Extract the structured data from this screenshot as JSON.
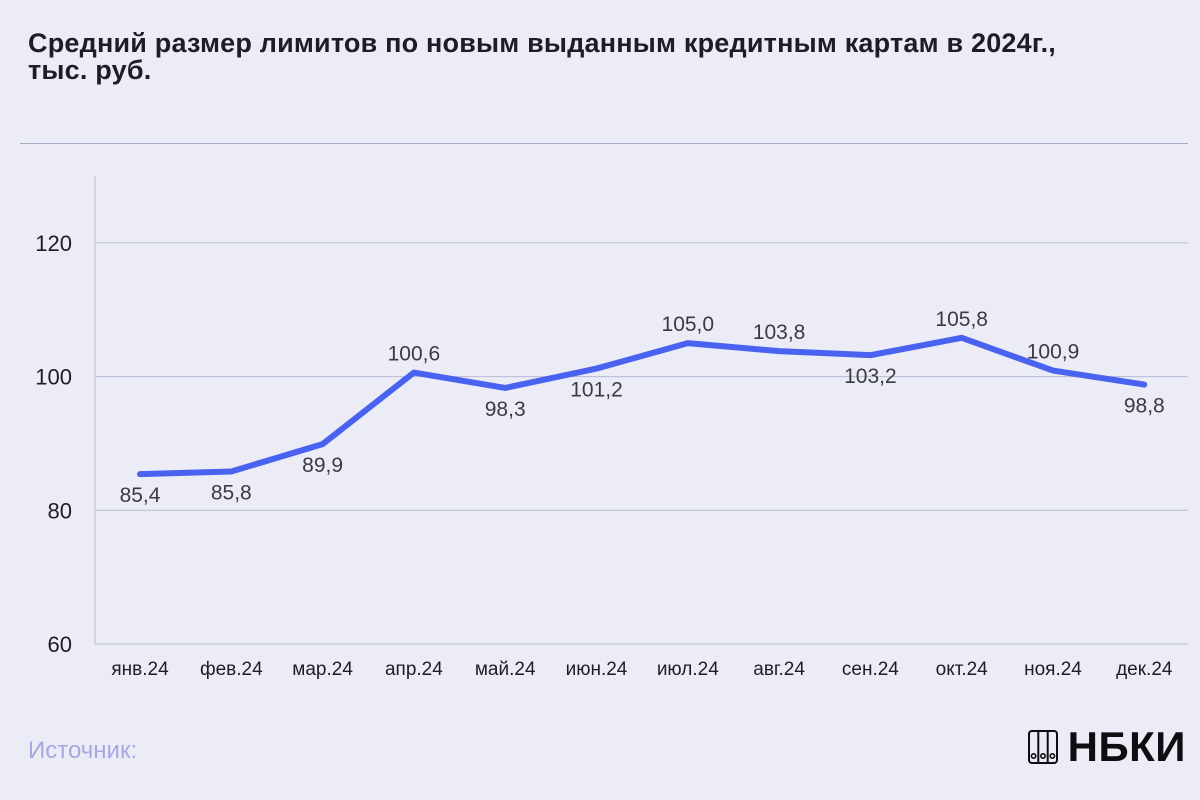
{
  "chart_data": {
    "type": "line",
    "title_line1": "Средний размер лимитов по новым выданным кредитным картам в 2024г.,",
    "title_line2": "тыс. руб.",
    "categories": [
      "янв.24",
      "фев.24",
      "мар.24",
      "апр.24",
      "май.24",
      "июн.24",
      "июл.24",
      "авг.24",
      "сен.24",
      "окт.24",
      "ноя.24",
      "дек.24"
    ],
    "series": [
      {
        "values": [
          85.4,
          85.8,
          89.9,
          100.6,
          98.3,
          101.2,
          105.0,
          103.8,
          103.2,
          105.8,
          100.9,
          98.8
        ],
        "data_labels": [
          "85,4",
          "85,8",
          "89,9",
          "100,6",
          "98,3",
          "101,2",
          "105,0",
          "103,8",
          "103,2",
          "105,8",
          "100,9",
          "98,8"
        ],
        "color": "#4a62f0"
      }
    ],
    "ylim": [
      60,
      130
    ],
    "yticks": [
      60,
      80,
      100,
      120
    ],
    "grid": true,
    "gridline_color": "#b9bbd3",
    "xlabel": "",
    "ylabel": ""
  },
  "footer": {
    "source_label": "Источник:",
    "brand": "НБКИ",
    "brand_icon": "binder-icon"
  }
}
